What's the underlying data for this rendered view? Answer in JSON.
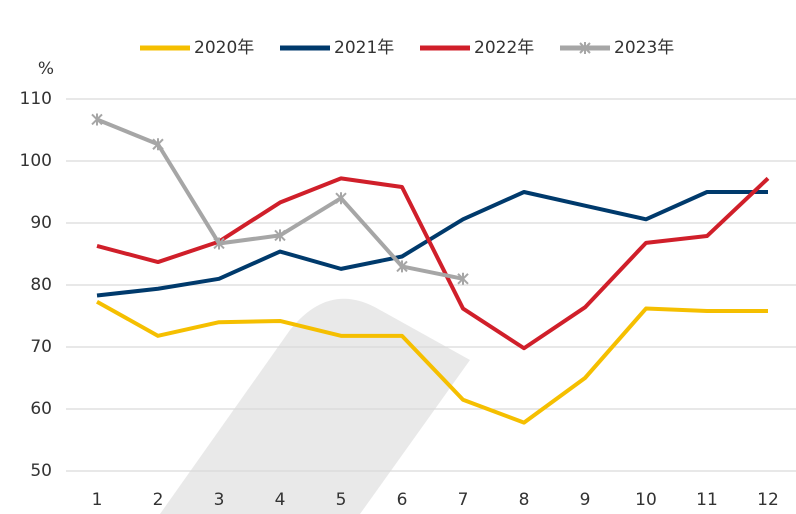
{
  "chart_data": {
    "type": "line",
    "y_label": "%",
    "categories": [
      "1",
      "2",
      "3",
      "4",
      "5",
      "6",
      "7",
      "8",
      "9",
      "10",
      "11",
      "12"
    ],
    "series": [
      {
        "name": "2020年",
        "color": "#f5bf00",
        "values": [
          77.3,
          71.8,
          74,
          74.2,
          71.8,
          71.8,
          61.5,
          57.8,
          65,
          76.2,
          75.8,
          75.8
        ]
      },
      {
        "name": "2021年",
        "color": "#003a6c",
        "values": [
          78.3,
          79.4,
          81,
          85.4,
          82.6,
          84.6,
          90.6,
          95,
          92.8,
          90.6,
          95,
          95
        ]
      },
      {
        "name": "2022年",
        "color": "#d01f2a",
        "values": [
          86.3,
          83.7,
          87,
          93.3,
          97.2,
          95.8,
          76.2,
          69.8,
          76.4,
          86.8,
          87.9,
          97.2
        ]
      },
      {
        "name": "2023年",
        "color": "#a6a6a6",
        "marker": "asterisk",
        "values": [
          106.7,
          102.7,
          86.7,
          88,
          94,
          83,
          81,
          null,
          null,
          null,
          null,
          null
        ]
      }
    ],
    "ylim": [
      50,
      110
    ],
    "yticks": [
      50,
      60,
      70,
      80,
      90,
      100,
      110
    ],
    "grid": true,
    "legend": "top"
  }
}
